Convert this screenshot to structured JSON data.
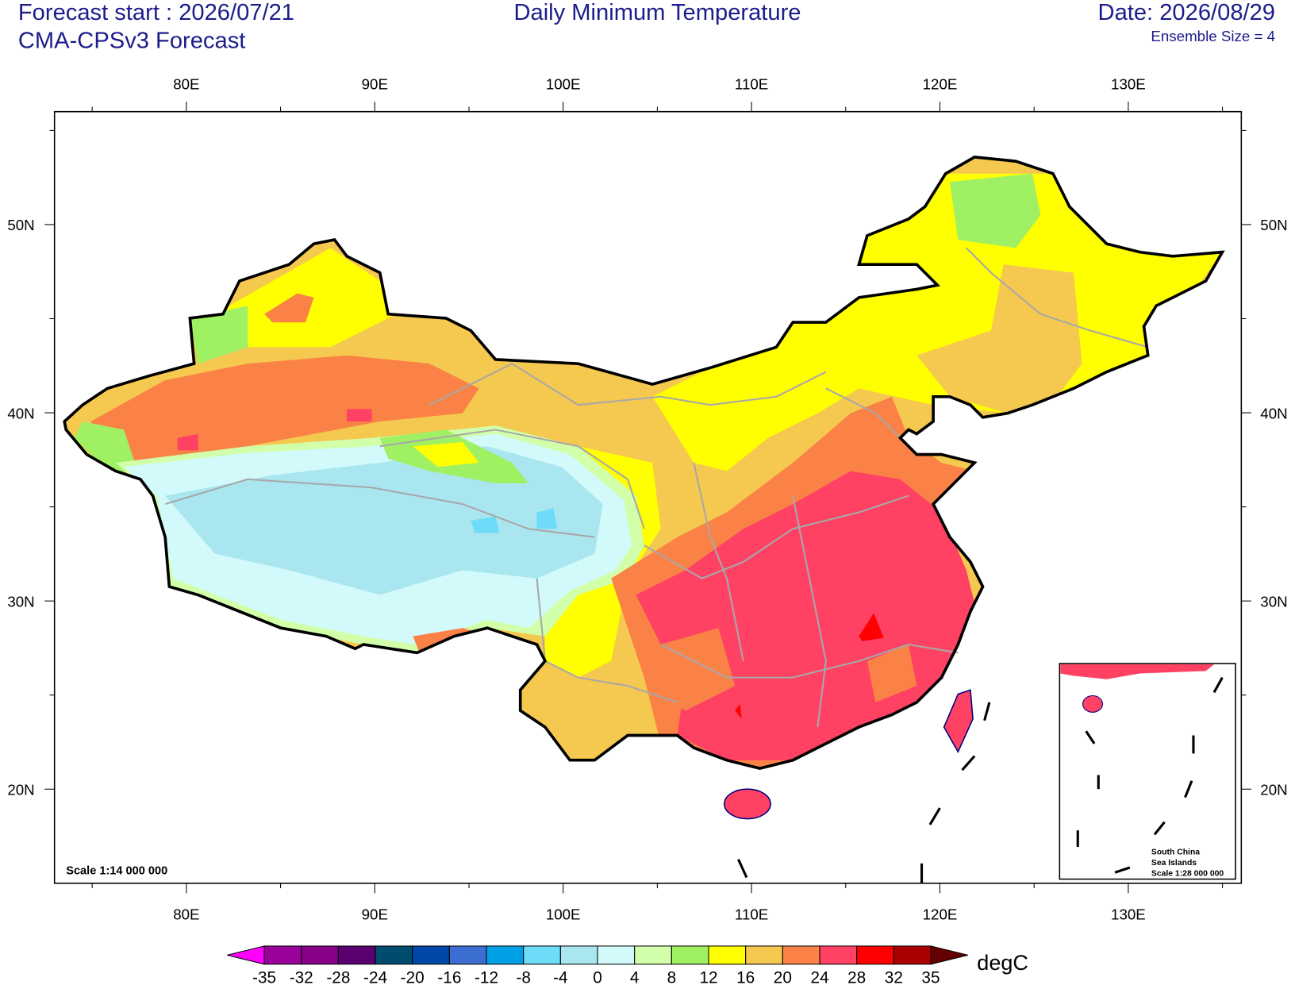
{
  "header": {
    "forecast_start": "Forecast start : 2026/07/21",
    "model": "CMA-CPSv3 Forecast",
    "title": "Daily Minimum Temperature",
    "date": "Date: 2026/08/29",
    "ensemble": "Ensemble Size = 4"
  },
  "map": {
    "lonlim": [
      73,
      136
    ],
    "latlim": [
      15,
      56
    ],
    "lon_ticks": [
      {
        "value": 80,
        "label": "80E"
      },
      {
        "value": 90,
        "label": "90E"
      },
      {
        "value": 100,
        "label": "100E"
      },
      {
        "value": 110,
        "label": "110E"
      },
      {
        "value": 120,
        "label": "120E"
      },
      {
        "value": 130,
        "label": "130E"
      }
    ],
    "lat_ticks": [
      {
        "value": 20,
        "label": "20N"
      },
      {
        "value": 30,
        "label": "30N"
      },
      {
        "value": 40,
        "label": "40N"
      },
      {
        "value": 50,
        "label": "50N"
      }
    ],
    "lon_minor_ticks": [
      75,
      85,
      95,
      105,
      115,
      125,
      135
    ],
    "lat_minor_ticks": [
      25,
      35,
      45,
      55
    ],
    "scale": "Scale 1:14 000 000",
    "inset": {
      "line1": "South China",
      "line2": "Sea Islands",
      "scale": "Scale 1:28 000 000"
    }
  },
  "colorbar": {
    "levels": [
      -35,
      -32,
      -28,
      -24,
      -20,
      -16,
      -12,
      -8,
      -4,
      0,
      4,
      8,
      12,
      16,
      20,
      24,
      28,
      32,
      35
    ],
    "colors": [
      "#ff00ff",
      "#9a009a",
      "#880088",
      "#5a0070",
      "#004c6e",
      "#0048a8",
      "#3c6ed2",
      "#00a0e6",
      "#6edcf8",
      "#aae6f0",
      "#d2fafa",
      "#d2ffaa",
      "#a0f064",
      "#ffff00",
      "#f5c850",
      "#fa8246",
      "#ff4164",
      "#ff0000",
      "#aa0000",
      "#640000"
    ],
    "units": "degC"
  }
}
